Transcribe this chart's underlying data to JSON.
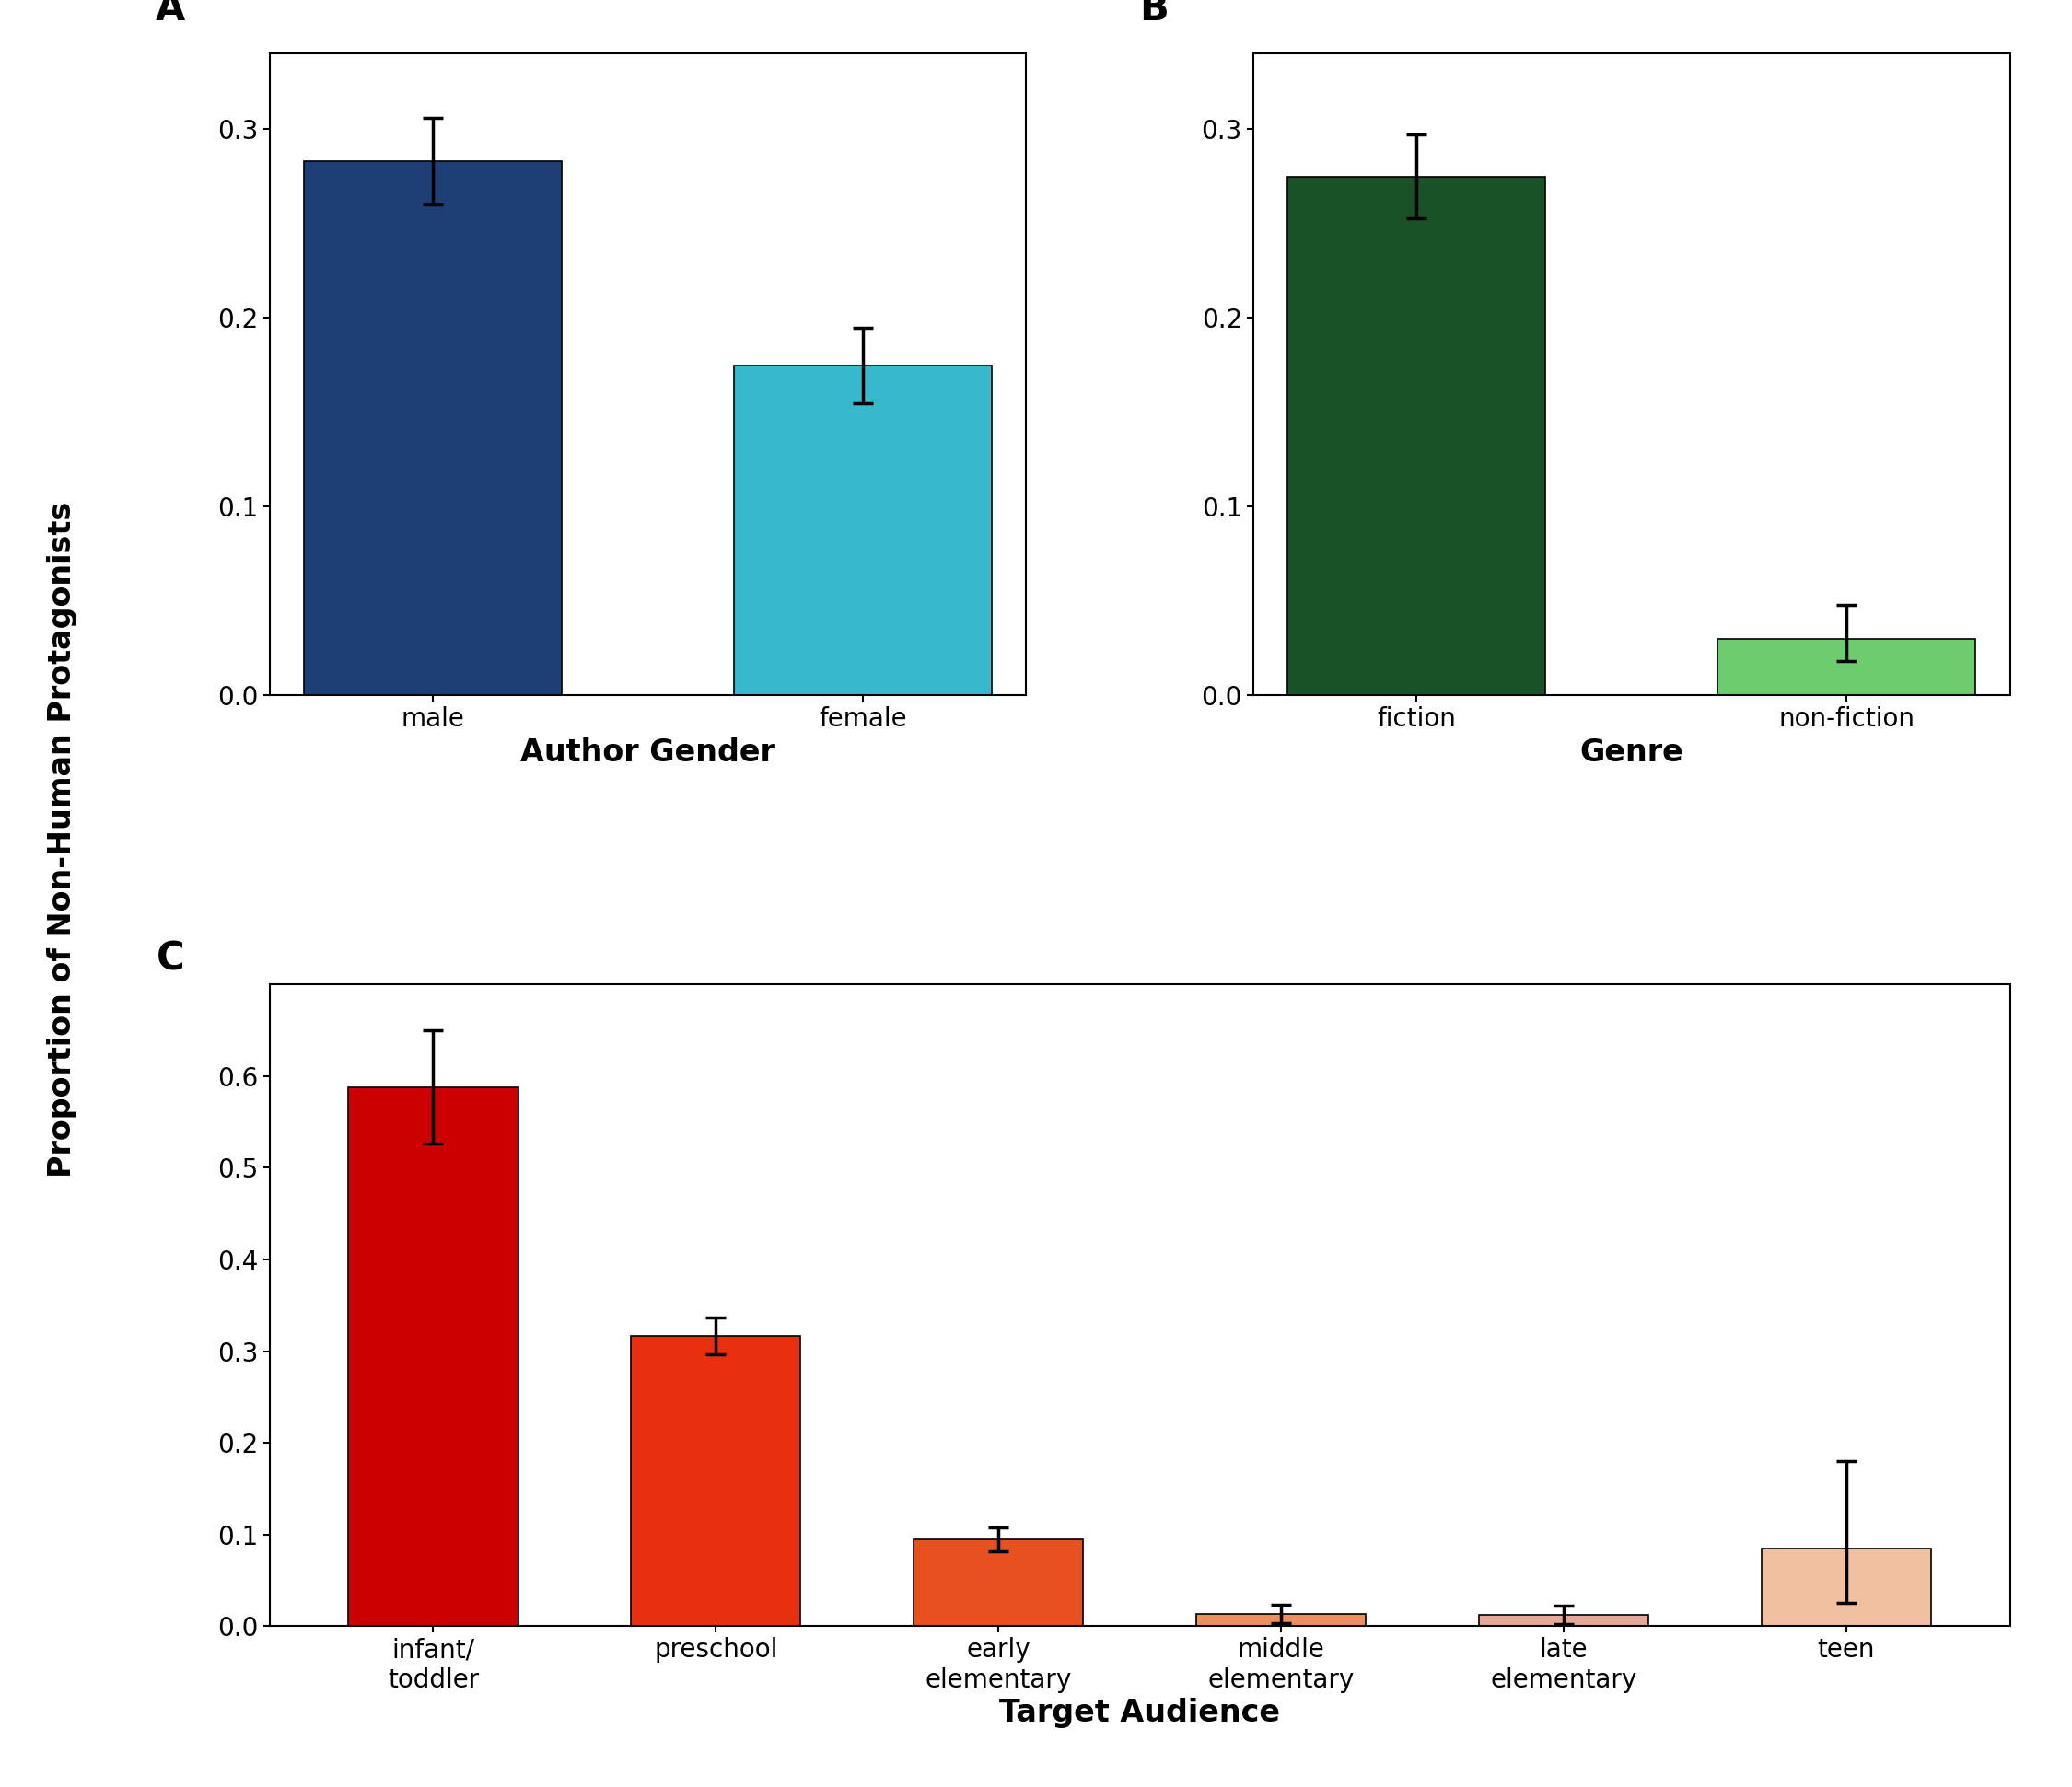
{
  "panel_A": {
    "categories": [
      "male",
      "female"
    ],
    "values": [
      0.283,
      0.175
    ],
    "yerr_upper": [
      0.023,
      0.02
    ],
    "yerr_lower": [
      0.023,
      0.02
    ],
    "colors": [
      "#1e3f75",
      "#38b8cc"
    ],
    "xlabel": "Author Gender",
    "ylim": [
      0,
      0.34
    ],
    "yticks": [
      0.0,
      0.1,
      0.2,
      0.3
    ],
    "label": "A"
  },
  "panel_B": {
    "categories": [
      "fiction",
      "non-fiction"
    ],
    "values": [
      0.275,
      0.03
    ],
    "yerr_upper": [
      0.022,
      0.018
    ],
    "yerr_lower": [
      0.022,
      0.012
    ],
    "colors": [
      "#1a5228",
      "#6dcc6d"
    ],
    "xlabel": "Genre",
    "ylim": [
      0,
      0.34
    ],
    "yticks": [
      0.0,
      0.1,
      0.2,
      0.3
    ],
    "label": "B"
  },
  "panel_C": {
    "categories": [
      "infant/\ntoddler",
      "preschool",
      "early\nelementary",
      "middle\nelementary",
      "late\nelementary",
      "teen"
    ],
    "values": [
      0.588,
      0.317,
      0.095,
      0.013,
      0.012,
      0.085
    ],
    "yerr_upper": [
      0.062,
      0.02,
      0.013,
      0.01,
      0.01,
      0.095
    ],
    "yerr_lower": [
      0.062,
      0.02,
      0.013,
      0.01,
      0.01,
      0.06
    ],
    "colors": [
      "#cc0000",
      "#e83010",
      "#e85020",
      "#e89060",
      "#e8a898",
      "#f0c0a0"
    ],
    "xlabel": "Target Audience",
    "ylim": [
      0,
      0.7
    ],
    "yticks": [
      0.0,
      0.1,
      0.2,
      0.3,
      0.4,
      0.5,
      0.6
    ],
    "label": "C"
  },
  "ylabel": "Proportion of Non-Human Protagonists",
  "ylabel_fontsize": 24,
  "axis_label_fontsize": 24,
  "tick_fontsize": 20,
  "panel_label_fontsize": 30,
  "bar_width": 0.6,
  "capsize": 8,
  "elinewidth": 2.5,
  "ecapthick": 2.5
}
